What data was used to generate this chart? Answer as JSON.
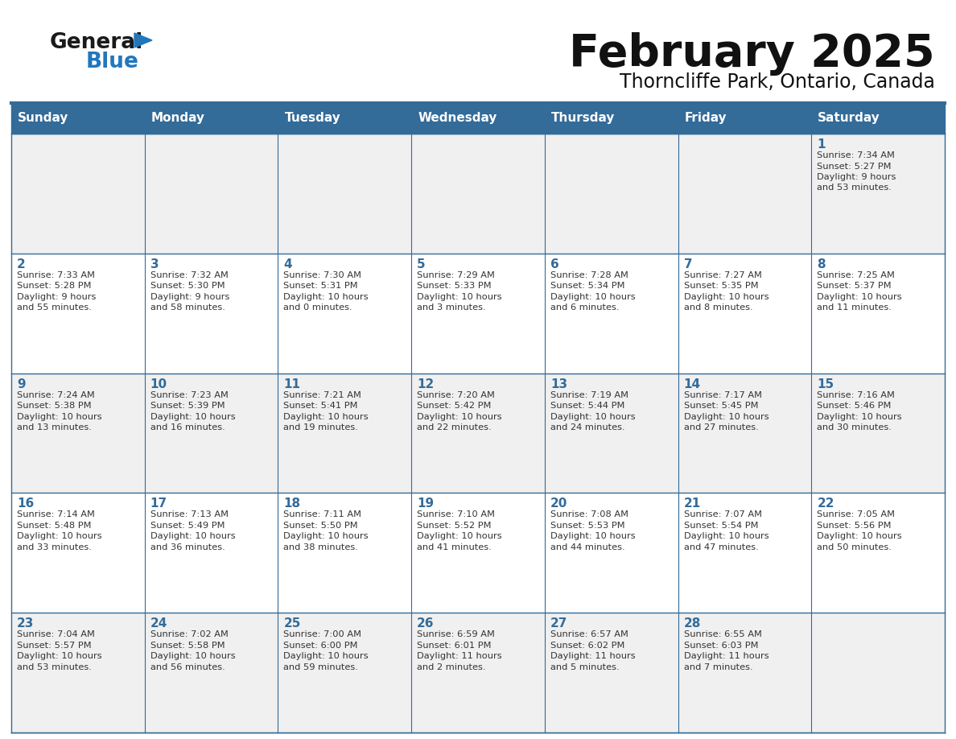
{
  "title": "February 2025",
  "subtitle": "Thorncliffe Park, Ontario, Canada",
  "header_bg": "#336b99",
  "header_text_color": "#ffffff",
  "weekdays": [
    "Sunday",
    "Monday",
    "Tuesday",
    "Wednesday",
    "Thursday",
    "Friday",
    "Saturday"
  ],
  "row_bg_odd": "#f0f0f0",
  "row_bg_even": "#ffffff",
  "cell_border_color": "#336b99",
  "day_number_color": "#336b99",
  "info_text_color": "#333333",
  "logo_general_color": "#1a1a1a",
  "logo_blue_color": "#2277bb",
  "calendar": [
    [
      {
        "day": null,
        "sunrise": null,
        "sunset": null,
        "daylight": null
      },
      {
        "day": null,
        "sunrise": null,
        "sunset": null,
        "daylight": null
      },
      {
        "day": null,
        "sunrise": null,
        "sunset": null,
        "daylight": null
      },
      {
        "day": null,
        "sunrise": null,
        "sunset": null,
        "daylight": null
      },
      {
        "day": null,
        "sunrise": null,
        "sunset": null,
        "daylight": null
      },
      {
        "day": null,
        "sunrise": null,
        "sunset": null,
        "daylight": null
      },
      {
        "day": 1,
        "sunrise": "7:34 AM",
        "sunset": "5:27 PM",
        "daylight": "9 hours\nand 53 minutes."
      }
    ],
    [
      {
        "day": 2,
        "sunrise": "7:33 AM",
        "sunset": "5:28 PM",
        "daylight": "9 hours\nand 55 minutes."
      },
      {
        "day": 3,
        "sunrise": "7:32 AM",
        "sunset": "5:30 PM",
        "daylight": "9 hours\nand 58 minutes."
      },
      {
        "day": 4,
        "sunrise": "7:30 AM",
        "sunset": "5:31 PM",
        "daylight": "10 hours\nand 0 minutes."
      },
      {
        "day": 5,
        "sunrise": "7:29 AM",
        "sunset": "5:33 PM",
        "daylight": "10 hours\nand 3 minutes."
      },
      {
        "day": 6,
        "sunrise": "7:28 AM",
        "sunset": "5:34 PM",
        "daylight": "10 hours\nand 6 minutes."
      },
      {
        "day": 7,
        "sunrise": "7:27 AM",
        "sunset": "5:35 PM",
        "daylight": "10 hours\nand 8 minutes."
      },
      {
        "day": 8,
        "sunrise": "7:25 AM",
        "sunset": "5:37 PM",
        "daylight": "10 hours\nand 11 minutes."
      }
    ],
    [
      {
        "day": 9,
        "sunrise": "7:24 AM",
        "sunset": "5:38 PM",
        "daylight": "10 hours\nand 13 minutes."
      },
      {
        "day": 10,
        "sunrise": "7:23 AM",
        "sunset": "5:39 PM",
        "daylight": "10 hours\nand 16 minutes."
      },
      {
        "day": 11,
        "sunrise": "7:21 AM",
        "sunset": "5:41 PM",
        "daylight": "10 hours\nand 19 minutes."
      },
      {
        "day": 12,
        "sunrise": "7:20 AM",
        "sunset": "5:42 PM",
        "daylight": "10 hours\nand 22 minutes."
      },
      {
        "day": 13,
        "sunrise": "7:19 AM",
        "sunset": "5:44 PM",
        "daylight": "10 hours\nand 24 minutes."
      },
      {
        "day": 14,
        "sunrise": "7:17 AM",
        "sunset": "5:45 PM",
        "daylight": "10 hours\nand 27 minutes."
      },
      {
        "day": 15,
        "sunrise": "7:16 AM",
        "sunset": "5:46 PM",
        "daylight": "10 hours\nand 30 minutes."
      }
    ],
    [
      {
        "day": 16,
        "sunrise": "7:14 AM",
        "sunset": "5:48 PM",
        "daylight": "10 hours\nand 33 minutes."
      },
      {
        "day": 17,
        "sunrise": "7:13 AM",
        "sunset": "5:49 PM",
        "daylight": "10 hours\nand 36 minutes."
      },
      {
        "day": 18,
        "sunrise": "7:11 AM",
        "sunset": "5:50 PM",
        "daylight": "10 hours\nand 38 minutes."
      },
      {
        "day": 19,
        "sunrise": "7:10 AM",
        "sunset": "5:52 PM",
        "daylight": "10 hours\nand 41 minutes."
      },
      {
        "day": 20,
        "sunrise": "7:08 AM",
        "sunset": "5:53 PM",
        "daylight": "10 hours\nand 44 minutes."
      },
      {
        "day": 21,
        "sunrise": "7:07 AM",
        "sunset": "5:54 PM",
        "daylight": "10 hours\nand 47 minutes."
      },
      {
        "day": 22,
        "sunrise": "7:05 AM",
        "sunset": "5:56 PM",
        "daylight": "10 hours\nand 50 minutes."
      }
    ],
    [
      {
        "day": 23,
        "sunrise": "7:04 AM",
        "sunset": "5:57 PM",
        "daylight": "10 hours\nand 53 minutes."
      },
      {
        "day": 24,
        "sunrise": "7:02 AM",
        "sunset": "5:58 PM",
        "daylight": "10 hours\nand 56 minutes."
      },
      {
        "day": 25,
        "sunrise": "7:00 AM",
        "sunset": "6:00 PM",
        "daylight": "10 hours\nand 59 minutes."
      },
      {
        "day": 26,
        "sunrise": "6:59 AM",
        "sunset": "6:01 PM",
        "daylight": "11 hours\nand 2 minutes."
      },
      {
        "day": 27,
        "sunrise": "6:57 AM",
        "sunset": "6:02 PM",
        "daylight": "11 hours\nand 5 minutes."
      },
      {
        "day": 28,
        "sunrise": "6:55 AM",
        "sunset": "6:03 PM",
        "daylight": "11 hours\nand 7 minutes."
      },
      {
        "day": null,
        "sunrise": null,
        "sunset": null,
        "daylight": null
      }
    ]
  ]
}
